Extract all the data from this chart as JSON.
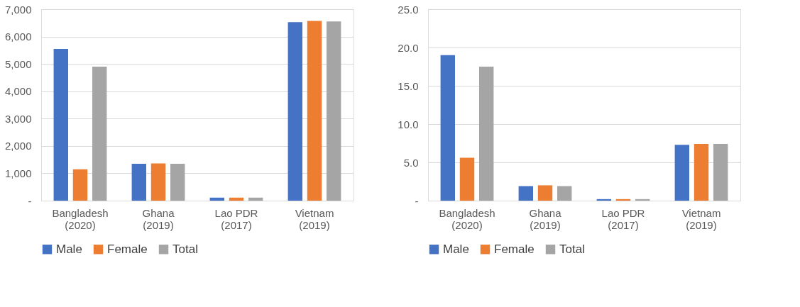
{
  "chart_data": [
    {
      "type": "bar",
      "categories": [
        "Bangladesh\n(2020)",
        "Ghana\n(2019)",
        "Lao PDR\n(2017)",
        "Vietnam\n(2019)"
      ],
      "series": [
        {
          "name": "Male",
          "color": "#4472c4",
          "values": [
            5550,
            1350,
            110,
            6530
          ]
        },
        {
          "name": "Female",
          "color": "#ed7d31",
          "values": [
            1150,
            1360,
            110,
            6570
          ]
        },
        {
          "name": "Total",
          "color": "#a5a5a5",
          "values": [
            4900,
            1350,
            110,
            6550
          ]
        }
      ],
      "ylim": [
        0,
        7000
      ],
      "yticks": [
        {
          "value": 0,
          "label": "-"
        },
        {
          "value": 1000,
          "label": "1,000"
        },
        {
          "value": 2000,
          "label": "2,000"
        },
        {
          "value": 3000,
          "label": "3,000"
        },
        {
          "value": 4000,
          "label": "4,000"
        },
        {
          "value": 5000,
          "label": "5,000"
        },
        {
          "value": 6000,
          "label": "6,000"
        },
        {
          "value": 7000,
          "label": "7,000"
        }
      ],
      "grid": "y",
      "legend": "bottom"
    },
    {
      "type": "bar",
      "categories": [
        "Bangladesh\n(2020)",
        "Ghana\n(2019)",
        "Lao PDR\n(2017)",
        "Vietnam\n(2019)"
      ],
      "series": [
        {
          "name": "Male",
          "color": "#4472c4",
          "values": [
            19.0,
            1.9,
            0.2,
            7.3
          ]
        },
        {
          "name": "Female",
          "color": "#ed7d31",
          "values": [
            5.6,
            2.0,
            0.2,
            7.4
          ]
        },
        {
          "name": "Total",
          "color": "#a5a5a5",
          "values": [
            17.5,
            1.9,
            0.2,
            7.4
          ]
        }
      ],
      "ylim": [
        0,
        25
      ],
      "yticks": [
        {
          "value": 0,
          "label": "-"
        },
        {
          "value": 5,
          "label": "5.0"
        },
        {
          "value": 10,
          "label": "10.0"
        },
        {
          "value": 15,
          "label": "15.0"
        },
        {
          "value": 20,
          "label": "20.0"
        },
        {
          "value": 25,
          "label": "25.0"
        }
      ],
      "grid": "y",
      "legend": "bottom"
    }
  ]
}
